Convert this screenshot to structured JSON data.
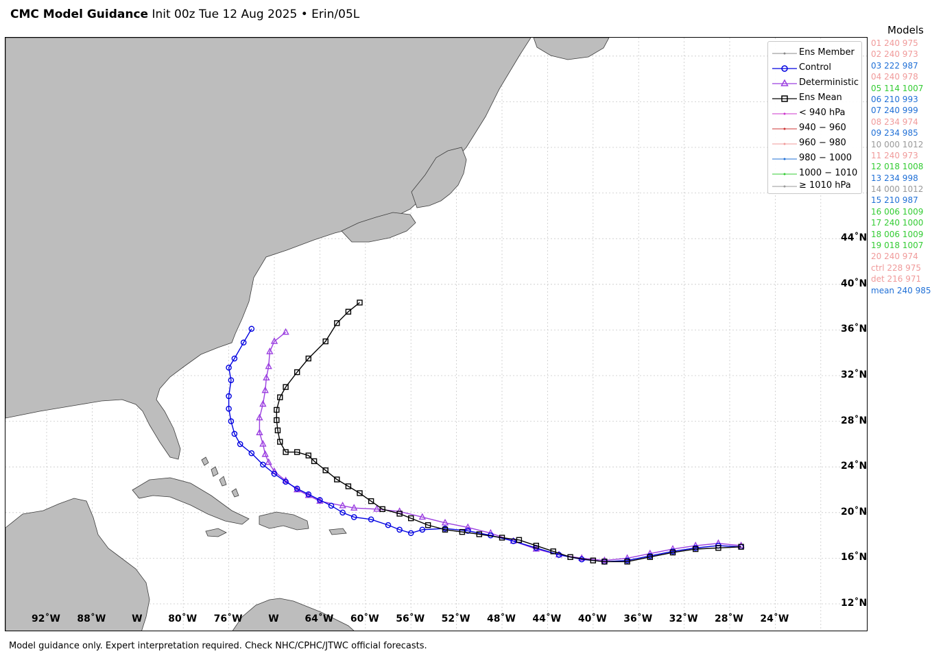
{
  "title": {
    "bold": "CMC Model Guidance",
    "rest": "Init 00z Tue 12 Aug 2025 • Erin/05L"
  },
  "footer": "Model guidance only. Expert interpretation required. Check NHC/CPHC/JTWC official forecasts.",
  "colors": {
    "land": "#bdbdbd",
    "ocean": "#ffffff",
    "grid": "#c8c8c8",
    "control": "#0000e0",
    "deterministic": "#9b3fe0",
    "ens_mean": "#000000",
    "lt940": "#cc33cc",
    "p940_960": "#cc3333",
    "p960_980": "#f09a9a",
    "p980_1000": "#1f6fd6",
    "p1000_1010": "#33cc33",
    "ge1010": "#999999"
  },
  "legend": [
    {
      "label": "Ens Member",
      "icon": "ens-member-line-icon"
    },
    {
      "label": "Control",
      "icon": "circle-marker-icon"
    },
    {
      "label": "Deterministic",
      "icon": "triangle-marker-icon"
    },
    {
      "label": "Ens Mean",
      "icon": "square-marker-icon"
    },
    {
      "label": "< 940 hPa",
      "icon": "pressure-line-icon"
    },
    {
      "label": "940 − 960",
      "icon": "pressure-line-icon"
    },
    {
      "label": "960 − 980",
      "icon": "pressure-line-icon"
    },
    {
      "label": "980 − 1000",
      "icon": "pressure-line-icon"
    },
    {
      "label": "1000 − 1010",
      "icon": "pressure-line-icon"
    },
    {
      "label": "≥ 1010 hPa",
      "icon": "pressure-line-icon"
    }
  ],
  "models_title": "Models",
  "models": [
    {
      "text": "01 240 975",
      "color": "#f09a9a"
    },
    {
      "text": "02 240 973",
      "color": "#f09a9a"
    },
    {
      "text": "03 222 987",
      "color": "#1f6fd6"
    },
    {
      "text": "04 240 978",
      "color": "#f09a9a"
    },
    {
      "text": "05 114 1007",
      "color": "#33cc33"
    },
    {
      "text": "06 210 993",
      "color": "#1f6fd6"
    },
    {
      "text": "07 240 999",
      "color": "#1f6fd6"
    },
    {
      "text": "08 234 974",
      "color": "#f09a9a"
    },
    {
      "text": "09 234 985",
      "color": "#1f6fd6"
    },
    {
      "text": "10 000 1012",
      "color": "#999999"
    },
    {
      "text": "11 240 973",
      "color": "#f09a9a"
    },
    {
      "text": "12 018 1008",
      "color": "#33cc33"
    },
    {
      "text": "13 234 998",
      "color": "#1f6fd6"
    },
    {
      "text": "14 000 1012",
      "color": "#999999"
    },
    {
      "text": "15 210 987",
      "color": "#1f6fd6"
    },
    {
      "text": "16 006 1009",
      "color": "#33cc33"
    },
    {
      "text": "17 240 1000",
      "color": "#33cc33"
    },
    {
      "text": "18 006 1009",
      "color": "#33cc33"
    },
    {
      "text": "19 018 1007",
      "color": "#33cc33"
    },
    {
      "text": "20 240 974",
      "color": "#f09a9a"
    },
    {
      "text": "ctrl 228 975",
      "color": "#f09a9a"
    },
    {
      "text": "det 216 971",
      "color": "#f09a9a"
    },
    {
      "text": "mean 240 985",
      "color": "#1f6fd6"
    }
  ],
  "lon_labels": [
    "92˚W",
    "88˚W",
    "W",
    "80˚W",
    "76˚W",
    "W",
    "64˚W",
    "60˚W",
    "56˚W",
    "52˚W",
    "48˚W",
    "44˚W",
    "40˚W",
    "36˚W",
    "32˚W",
    "28˚W",
    "24˚W"
  ],
  "lat_labels": [
    "12˚N",
    "16˚N",
    "20˚N",
    "24˚N",
    "28˚N",
    "32˚N",
    "36˚N",
    "40˚N",
    "44˚N"
  ],
  "tracks": {
    "control": [
      [
        -31,
        17.0
      ],
      [
        -33,
        17.1
      ],
      [
        -35,
        16.9
      ],
      [
        -37,
        16.6
      ],
      [
        -39,
        16.2
      ],
      [
        -41,
        15.8
      ],
      [
        -43,
        15.7
      ],
      [
        -45,
        15.9
      ],
      [
        -47,
        16.3
      ],
      [
        -49,
        16.9
      ],
      [
        -51,
        17.5
      ],
      [
        -53,
        18.0
      ],
      [
        -55,
        18.4
      ],
      [
        -57,
        18.6
      ],
      [
        -59,
        18.5
      ],
      [
        -60,
        18.2
      ],
      [
        -61,
        18.5
      ],
      [
        -62,
        18.9
      ],
      [
        -63.5,
        19.4
      ],
      [
        -65,
        19.6
      ],
      [
        -66,
        20.0
      ],
      [
        -67,
        20.6
      ],
      [
        -68,
        21.1
      ],
      [
        -69,
        21.6
      ],
      [
        -70,
        22.1
      ],
      [
        -71,
        22.7
      ],
      [
        -72,
        23.4
      ],
      [
        -73,
        24.2
      ],
      [
        -74,
        25.2
      ],
      [
        -75,
        26.0
      ],
      [
        -75.5,
        26.9
      ],
      [
        -75.8,
        28.0
      ],
      [
        -76.0,
        29.1
      ],
      [
        -76.0,
        30.2
      ],
      [
        -75.8,
        31.6
      ],
      [
        -76.0,
        32.7
      ],
      [
        -75.5,
        33.5
      ],
      [
        -74.7,
        34.9
      ],
      [
        -74.0,
        36.1
      ]
    ],
    "deterministic": [
      [
        -31,
        17.1
      ],
      [
        -33,
        17.3
      ],
      [
        -35,
        17.1
      ],
      [
        -37,
        16.8
      ],
      [
        -39,
        16.4
      ],
      [
        -41,
        16.0
      ],
      [
        -43,
        15.8
      ],
      [
        -45,
        16.0
      ],
      [
        -47,
        16.3
      ],
      [
        -49,
        16.8
      ],
      [
        -51,
        17.5
      ],
      [
        -53,
        18.2
      ],
      [
        -55,
        18.7
      ],
      [
        -57,
        19.1
      ],
      [
        -59,
        19.6
      ],
      [
        -61,
        20.1
      ],
      [
        -63,
        20.3
      ],
      [
        -65,
        20.4
      ],
      [
        -66,
        20.6
      ],
      [
        -68,
        21.0
      ],
      [
        -69,
        21.5
      ],
      [
        -70,
        22.0
      ],
      [
        -71,
        22.8
      ],
      [
        -72,
        23.6
      ],
      [
        -72.5,
        24.4
      ],
      [
        -72.8,
        25.1
      ],
      [
        -73.0,
        26.0
      ],
      [
        -73.3,
        27.0
      ],
      [
        -73.3,
        28.3
      ],
      [
        -73.0,
        29.5
      ],
      [
        -72.8,
        30.7
      ],
      [
        -72.7,
        31.8
      ],
      [
        -72.5,
        32.8
      ],
      [
        -72.4,
        34.1
      ],
      [
        -72.0,
        35.0
      ],
      [
        -71.0,
        35.8
      ]
    ],
    "ens_mean": [
      [
        -31,
        17.0
      ],
      [
        -33,
        16.9
      ],
      [
        -35,
        16.8
      ],
      [
        -37,
        16.5
      ],
      [
        -39,
        16.1
      ],
      [
        -41,
        15.7
      ],
      [
        -43,
        15.7
      ],
      [
        -44,
        15.8
      ],
      [
        -46,
        16.1
      ],
      [
        -47.5,
        16.6
      ],
      [
        -49,
        17.1
      ],
      [
        -50.5,
        17.6
      ],
      [
        -52,
        17.8
      ],
      [
        -54,
        18.1
      ],
      [
        -55.5,
        18.3
      ],
      [
        -57,
        18.5
      ],
      [
        -58.5,
        18.9
      ],
      [
        -60,
        19.5
      ],
      [
        -61,
        19.9
      ],
      [
        -62.5,
        20.3
      ],
      [
        -63.5,
        21.0
      ],
      [
        -64.5,
        21.7
      ],
      [
        -65.5,
        22.3
      ],
      [
        -66.5,
        22.9
      ],
      [
        -67.5,
        23.7
      ],
      [
        -68.5,
        24.5
      ],
      [
        -69,
        25.0
      ],
      [
        -70,
        25.3
      ],
      [
        -71,
        25.3
      ],
      [
        -71.5,
        26.2
      ],
      [
        -71.7,
        27.2
      ],
      [
        -71.8,
        28.1
      ],
      [
        -71.8,
        29.0
      ],
      [
        -71.5,
        30.1
      ],
      [
        -71.0,
        31.0
      ],
      [
        -70.0,
        32.3
      ],
      [
        -69.0,
        33.5
      ],
      [
        -67.5,
        35.0
      ],
      [
        -66.5,
        36.6
      ],
      [
        -65.5,
        37.6
      ],
      [
        -64.5,
        38.4
      ]
    ]
  }
}
